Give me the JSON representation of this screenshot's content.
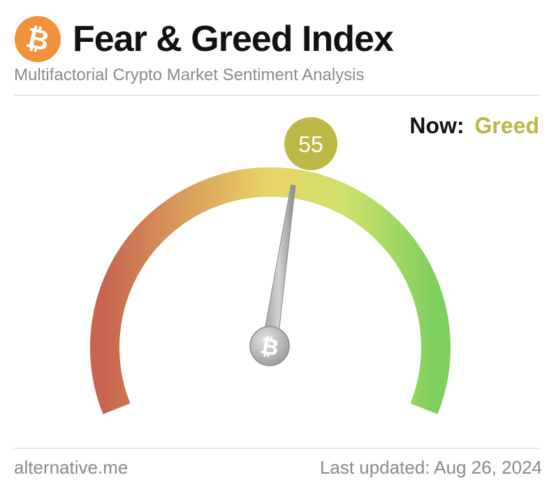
{
  "header": {
    "title": "Fear & Greed Index",
    "subtitle": "Multifactorial Crypto Market Sentiment Analysis",
    "logo_icon": "bitcoin-icon",
    "logo_color": "#f1923a"
  },
  "status": {
    "now_label": "Now:",
    "now_value": "Greed",
    "value_color": "#b8b845"
  },
  "gauge": {
    "value": 55,
    "value_text": "55",
    "min": 0,
    "max": 100,
    "colors": {
      "fear": "#c86450",
      "neutral": "#e8d466",
      "greed": "#7ed060"
    },
    "center_icon": "bitcoin-icon"
  },
  "footer": {
    "source": "alternative.me",
    "updated": "Last updated: Aug 26, 2024"
  }
}
